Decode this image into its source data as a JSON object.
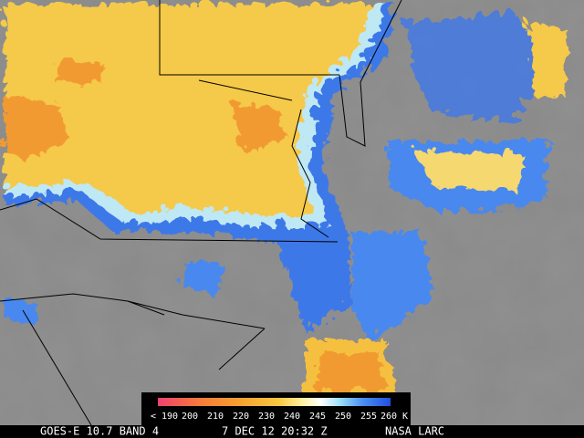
{
  "colorbar": {
    "labels": [
      "< 190",
      "200",
      "210",
      "220",
      "230",
      "240",
      "245",
      "250",
      "255",
      "260 K"
    ]
  },
  "footer": {
    "satellite": "GOES-E 10.7 BAND 4",
    "time": "7 DEC 12 20:32 Z",
    "credit": "NASA LARC"
  }
}
